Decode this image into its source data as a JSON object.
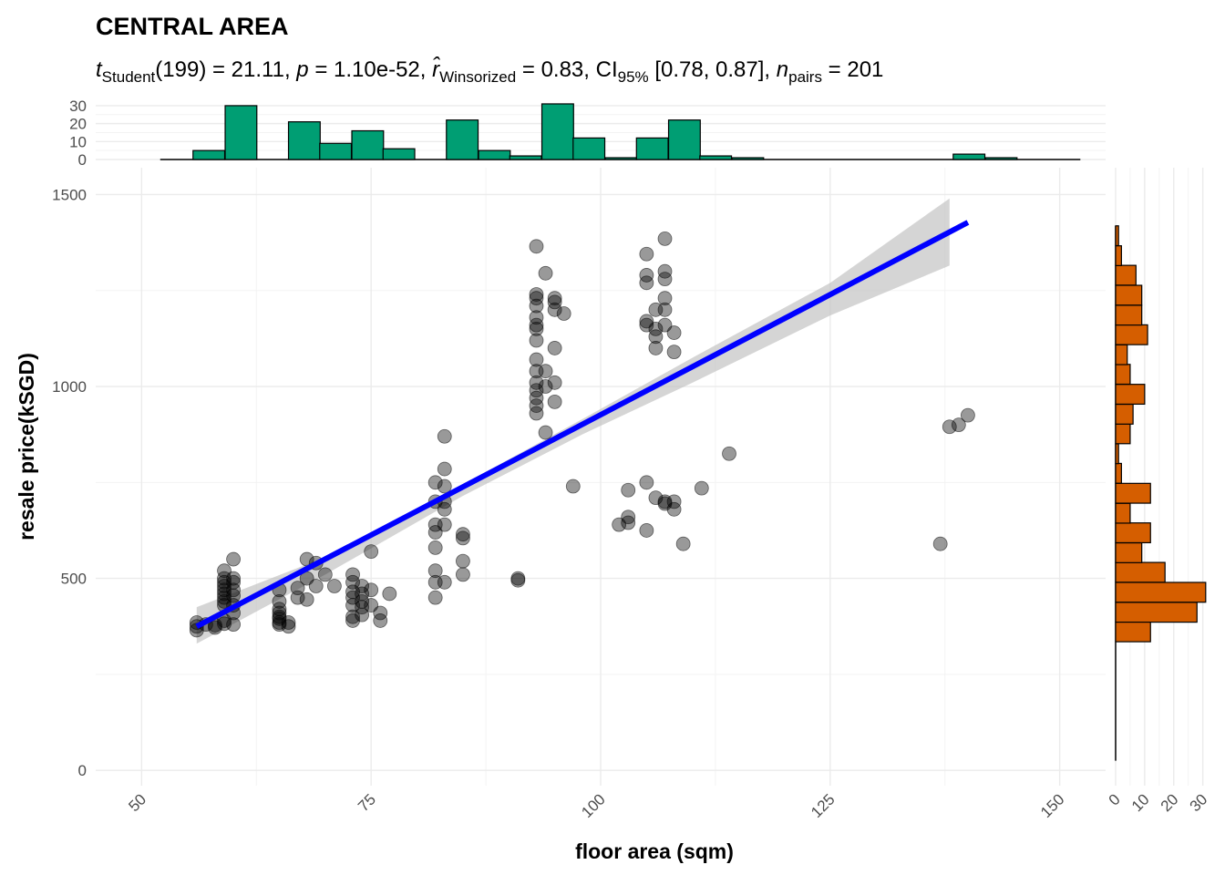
{
  "chart_data": {
    "type": "scatter",
    "title": "CENTRAL AREA",
    "subtitle": {
      "t_label": "Student",
      "df": "(199)",
      "t": "21.11",
      "p": "1.10e-52",
      "r_label": "Winsorized",
      "r": "0.83",
      "ci_label": "95%",
      "ci": "[0.78, 0.87]",
      "n_label": "pairs",
      "n": "201"
    },
    "xlabel": "floor area (sqm)",
    "ylabel": "resale price(kSGD)",
    "xlim": [
      45,
      155
    ],
    "ylim": [
      -40,
      1570
    ],
    "x_ticks": [
      50,
      75,
      100,
      125,
      150
    ],
    "y_ticks": [
      0,
      500,
      1000,
      1500
    ],
    "grid": true,
    "colors": {
      "points": "#000000",
      "fit_line": "#0000ff",
      "confidence_band": "#bebebe",
      "x_histogram": "#009e73",
      "y_histogram": "#d55e00"
    },
    "regression": {
      "x_range": [
        56,
        140
      ],
      "intercept": -326.7,
      "slope": 12.53,
      "band": [
        [
          56,
          330,
          425
        ],
        [
          70,
          510,
          555
        ],
        [
          85,
          715,
          745
        ],
        [
          98,
          875,
          915
        ],
        [
          110,
          1010,
          1075
        ],
        [
          125,
          1185,
          1270
        ],
        [
          138,
          1315,
          1490
        ]
      ]
    },
    "points": [
      [
        56,
        365
      ],
      [
        56,
        375
      ],
      [
        56,
        385
      ],
      [
        57,
        380
      ],
      [
        58,
        372
      ],
      [
        58,
        378
      ],
      [
        59,
        390
      ],
      [
        59,
        382
      ],
      [
        60,
        380
      ],
      [
        59,
        520
      ],
      [
        59,
        500
      ],
      [
        59,
        490
      ],
      [
        59,
        480
      ],
      [
        59,
        470
      ],
      [
        59,
        460
      ],
      [
        59,
        450
      ],
      [
        59,
        440
      ],
      [
        59,
        430
      ],
      [
        60,
        550
      ],
      [
        60,
        500
      ],
      [
        60,
        490
      ],
      [
        60,
        470
      ],
      [
        60,
        455
      ],
      [
        60,
        430
      ],
      [
        60,
        410
      ],
      [
        65,
        470
      ],
      [
        65,
        440
      ],
      [
        65,
        420
      ],
      [
        65,
        410
      ],
      [
        65,
        400
      ],
      [
        65,
        395
      ],
      [
        65,
        385
      ],
      [
        65,
        380
      ],
      [
        66,
        375
      ],
      [
        66,
        385
      ],
      [
        67,
        475
      ],
      [
        67,
        450
      ],
      [
        68,
        550
      ],
      [
        68,
        500
      ],
      [
        68,
        445
      ],
      [
        69,
        540
      ],
      [
        69,
        480
      ],
      [
        70,
        510
      ],
      [
        71,
        480
      ],
      [
        73,
        510
      ],
      [
        73,
        490
      ],
      [
        73,
        465
      ],
      [
        73,
        450
      ],
      [
        73,
        430
      ],
      [
        73,
        400
      ],
      [
        73,
        390
      ],
      [
        74,
        480
      ],
      [
        74,
        460
      ],
      [
        74,
        440
      ],
      [
        74,
        425
      ],
      [
        74,
        405
      ],
      [
        75,
        570
      ],
      [
        75,
        470
      ],
      [
        75,
        430
      ],
      [
        76,
        410
      ],
      [
        76,
        390
      ],
      [
        77,
        460
      ],
      [
        82,
        750
      ],
      [
        82,
        700
      ],
      [
        82,
        640
      ],
      [
        82,
        620
      ],
      [
        82,
        580
      ],
      [
        82,
        520
      ],
      [
        82,
        490
      ],
      [
        82,
        450
      ],
      [
        83,
        870
      ],
      [
        83,
        785
      ],
      [
        83,
        740
      ],
      [
        83,
        700
      ],
      [
        83,
        680
      ],
      [
        83,
        640
      ],
      [
        83,
        490
      ],
      [
        85,
        615
      ],
      [
        85,
        605
      ],
      [
        85,
        545
      ],
      [
        85,
        510
      ],
      [
        91,
        500
      ],
      [
        91,
        495
      ],
      [
        93,
        1365
      ],
      [
        93,
        1240
      ],
      [
        93,
        1230
      ],
      [
        93,
        1210
      ],
      [
        93,
        1180
      ],
      [
        93,
        1160
      ],
      [
        93,
        1150
      ],
      [
        93,
        1120
      ],
      [
        93,
        1070
      ],
      [
        93,
        1040
      ],
      [
        93,
        1010
      ],
      [
        93,
        990
      ],
      [
        93,
        970
      ],
      [
        93,
        950
      ],
      [
        93,
        930
      ],
      [
        94,
        1295
      ],
      [
        94,
        1040
      ],
      [
        94,
        1000
      ],
      [
        94,
        880
      ],
      [
        95,
        1230
      ],
      [
        95,
        1220
      ],
      [
        95,
        1200
      ],
      [
        95,
        1100
      ],
      [
        95,
        1010
      ],
      [
        95,
        960
      ],
      [
        96,
        1190
      ],
      [
        97,
        740
      ],
      [
        102,
        640
      ],
      [
        103,
        660
      ],
      [
        103,
        645
      ],
      [
        103,
        730
      ],
      [
        105,
        750
      ],
      [
        105,
        625
      ],
      [
        105,
        1345
      ],
      [
        105,
        1290
      ],
      [
        105,
        1270
      ],
      [
        105,
        1170
      ],
      [
        105,
        1160
      ],
      [
        106,
        1200
      ],
      [
        106,
        1150
      ],
      [
        106,
        1130
      ],
      [
        106,
        1100
      ],
      [
        106,
        710
      ],
      [
        107,
        1385
      ],
      [
        107,
        1300
      ],
      [
        107,
        1280
      ],
      [
        107,
        1230
      ],
      [
        107,
        1200
      ],
      [
        107,
        1160
      ],
      [
        107,
        700
      ],
      [
        107,
        695
      ],
      [
        108,
        1140
      ],
      [
        108,
        1090
      ],
      [
        108,
        700
      ],
      [
        108,
        680
      ],
      [
        109,
        590
      ],
      [
        111,
        735
      ],
      [
        114,
        825
      ],
      [
        137,
        590
      ],
      [
        138,
        895
      ],
      [
        139,
        900
      ],
      [
        140,
        925
      ]
    ],
    "x_histogram": {
      "bin_width": 3.45,
      "y_ticks": [
        0,
        10,
        20,
        30
      ],
      "ymax": 32,
      "bins": [
        [
          55.6,
          5
        ],
        [
          59.1,
          30
        ],
        [
          62.5,
          0
        ],
        [
          66.0,
          21
        ],
        [
          69.4,
          9
        ],
        [
          72.9,
          16
        ],
        [
          76.3,
          6
        ],
        [
          79.8,
          0
        ],
        [
          83.2,
          22
        ],
        [
          86.7,
          5
        ],
        [
          90.1,
          2
        ],
        [
          93.6,
          31
        ],
        [
          97.0,
          12
        ],
        [
          100.5,
          1
        ],
        [
          103.9,
          12
        ],
        [
          107.4,
          22
        ],
        [
          110.8,
          2
        ],
        [
          114.3,
          1
        ],
        [
          117.7,
          0
        ],
        [
          121.2,
          0
        ],
        [
          124.6,
          0
        ],
        [
          128.1,
          0
        ],
        [
          131.5,
          0
        ],
        [
          135.0,
          0
        ],
        [
          138.4,
          3
        ],
        [
          141.9,
          1
        ],
        [
          145.3,
          0
        ],
        [
          148.8,
          0
        ]
      ]
    },
    "y_histogram": {
      "bin_width": 51.6,
      "x_ticks": [
        0,
        10,
        20,
        30
      ],
      "xmax": 32,
      "bins": [
        [
          25,
          0
        ],
        [
          77,
          0
        ],
        [
          128,
          0
        ],
        [
          180,
          0
        ],
        [
          231,
          0
        ],
        [
          283,
          0
        ],
        [
          335,
          12
        ],
        [
          386,
          28
        ],
        [
          438,
          31
        ],
        [
          490,
          17
        ],
        [
          541,
          9
        ],
        [
          593,
          12
        ],
        [
          644,
          5
        ],
        [
          696,
          12
        ],
        [
          748,
          2
        ],
        [
          799,
          1
        ],
        [
          851,
          5
        ],
        [
          902,
          6
        ],
        [
          954,
          10
        ],
        [
          1006,
          5
        ],
        [
          1057,
          4
        ],
        [
          1109,
          11
        ],
        [
          1160,
          9
        ],
        [
          1212,
          9
        ],
        [
          1264,
          7
        ],
        [
          1315,
          2
        ],
        [
          1367,
          1
        ]
      ]
    }
  }
}
